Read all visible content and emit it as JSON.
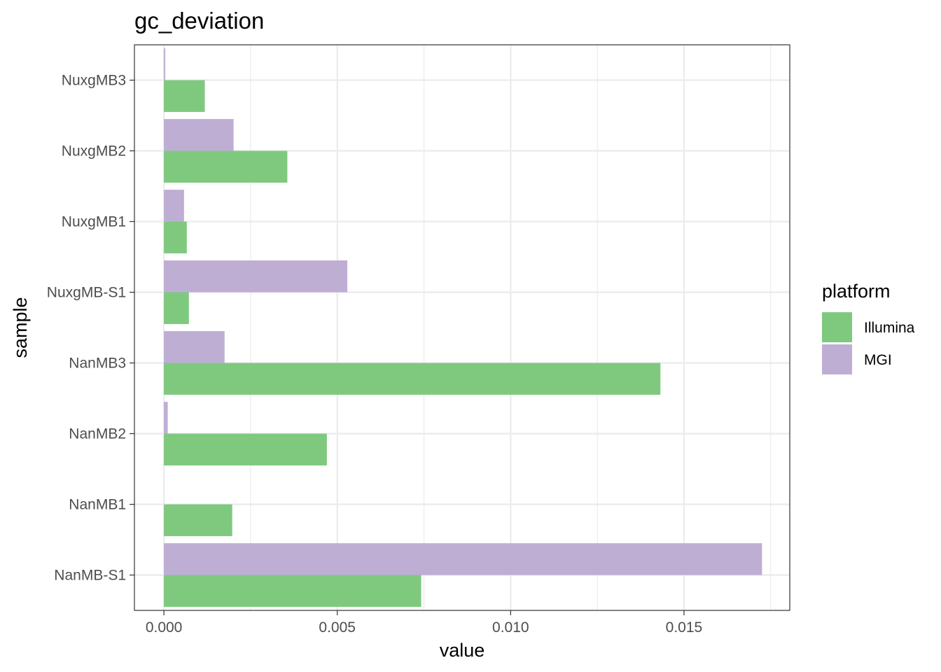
{
  "chart_data": {
    "type": "bar",
    "orientation": "horizontal",
    "title": "gc_deviation",
    "xlabel": "value",
    "ylabel": "sample",
    "xlim": [
      -0.00085,
      0.01805
    ],
    "xticks": [
      0.0,
      0.005,
      0.01,
      0.015
    ],
    "xtick_labels": [
      "0.000",
      "0.005",
      "0.010",
      "0.015"
    ],
    "grid": true,
    "categories": [
      "NuxgMB3",
      "NuxgMB2",
      "NuxgMB1",
      "NuxgMB-S1",
      "NanMB3",
      "NanMB2",
      "NanMB1",
      "NanMB-S1"
    ],
    "series": [
      {
        "name": "Illumina",
        "color": "#7fc97f",
        "values": [
          0.00118,
          0.00356,
          0.00066,
          0.00072,
          0.01432,
          0.0047,
          0.00197,
          0.00742
        ]
      },
      {
        "name": "MGI",
        "color": "#beaed4",
        "values": [
          4e-05,
          0.00201,
          0.00058,
          0.00529,
          0.00175,
          0.00011,
          null,
          0.01725
        ]
      }
    ],
    "legend": {
      "title": "platform",
      "position": "right"
    }
  }
}
